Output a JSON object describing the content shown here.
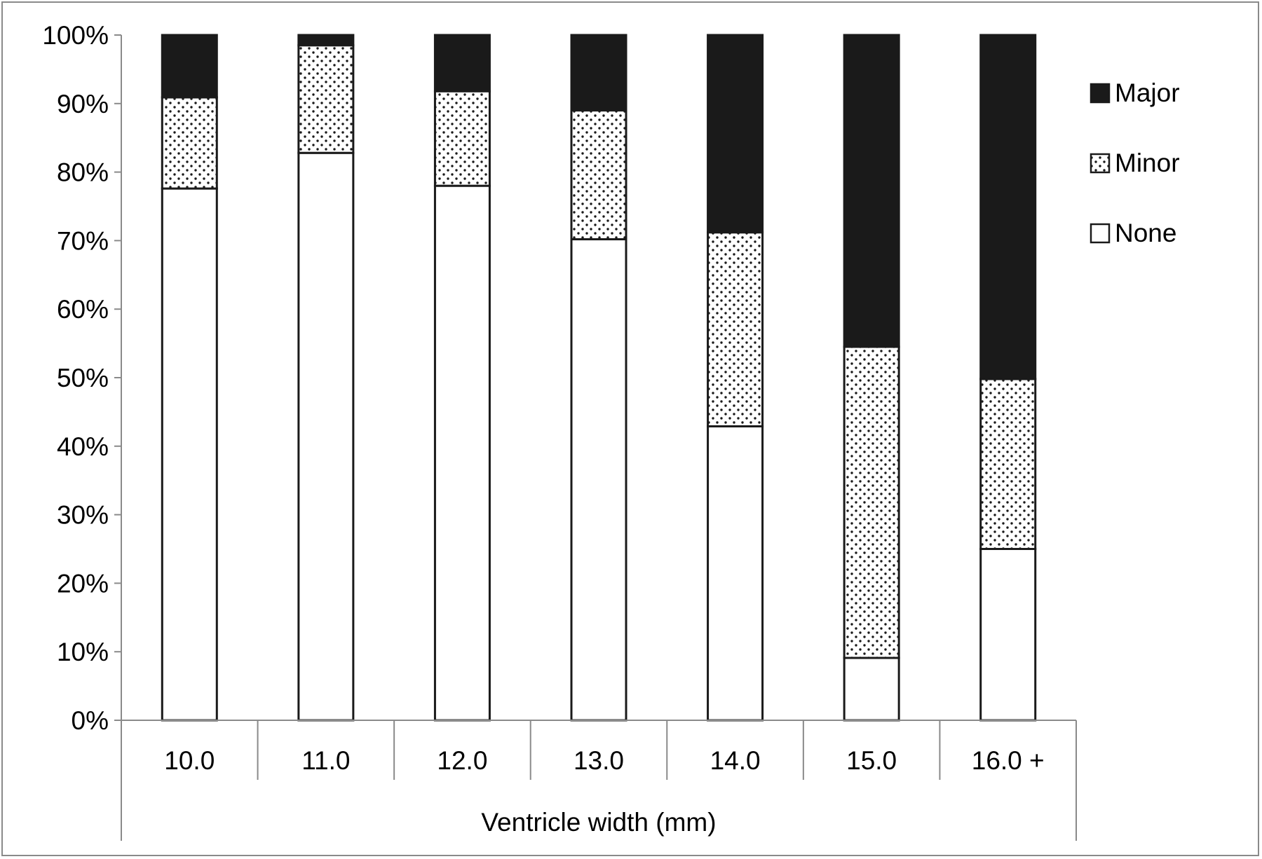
{
  "chart_data": {
    "type": "bar",
    "stacked": true,
    "percent": true,
    "title": "",
    "xlabel": "Ventricle width (mm)",
    "ylabel": "",
    "ylim": [
      0,
      100
    ],
    "yticks": [
      0,
      10,
      20,
      30,
      40,
      50,
      60,
      70,
      80,
      90,
      100
    ],
    "ytick_labels": [
      "0%",
      "10%",
      "20%",
      "30%",
      "40%",
      "50%",
      "60%",
      "70%",
      "80%",
      "90%",
      "100%"
    ],
    "categories": [
      "10.0",
      "11.0",
      "12.0",
      "13.0",
      "14.0",
      "15.0",
      "16.0 +"
    ],
    "series": [
      {
        "name": "None",
        "pattern": "white",
        "values": [
          77.6,
          82.8,
          78.0,
          70.2,
          42.9,
          9.1,
          25.0
        ]
      },
      {
        "name": "Minor",
        "pattern": "dotted",
        "values": [
          13.3,
          15.7,
          13.8,
          18.8,
          28.3,
          45.4,
          24.8
        ]
      },
      {
        "name": "Major",
        "pattern": "black",
        "values": [
          9.1,
          1.5,
          8.2,
          11.0,
          28.8,
          45.5,
          50.2
        ]
      }
    ],
    "legend": {
      "position": "top-right",
      "order": [
        "Major",
        "Minor",
        "None"
      ]
    },
    "grid": false,
    "colors": {
      "major": "#1a1a1a",
      "none": "#ffffff",
      "outline": "#1a1a1a",
      "axis": "#8a8a8a"
    }
  }
}
